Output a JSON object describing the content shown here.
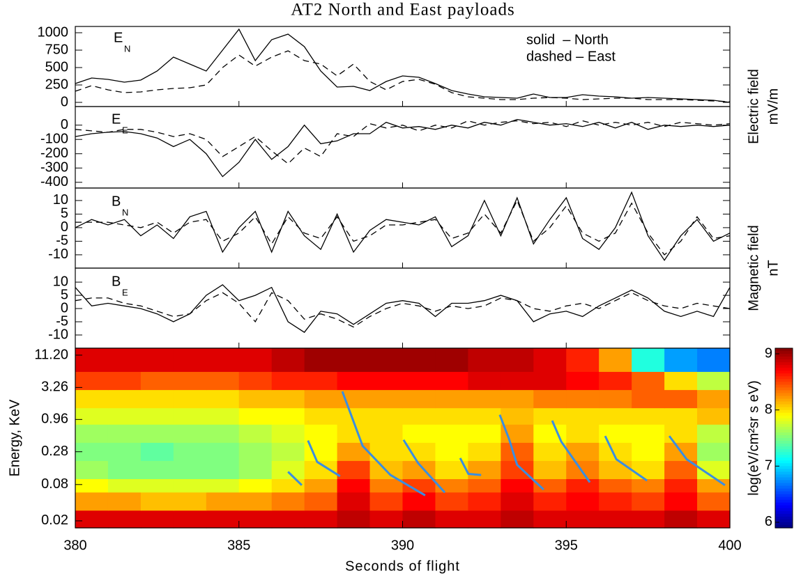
{
  "chart_data": [
    {
      "type": "line",
      "title": "AT2 North and East payloads",
      "label": "E",
      "label_sub": "N",
      "ylabel_lines": [
        "Electric field",
        "mV/m"
      ],
      "xlim": [
        380,
        400
      ],
      "ylim": [
        -60,
        1090
      ],
      "yticks": [
        0,
        250,
        500,
        750,
        1000
      ],
      "x": [
        380,
        380.5,
        381,
        381.5,
        382,
        382.5,
        383,
        383.5,
        384,
        384.5,
        385,
        385.5,
        386,
        386.5,
        387,
        387.5,
        388,
        388.5,
        389,
        389.5,
        390,
        390.5,
        391,
        391.5,
        392,
        392.5,
        393,
        393.5,
        394,
        394.5,
        395,
        395.5,
        396,
        396.5,
        397,
        397.5,
        398,
        398.5,
        399,
        399.5,
        400
      ],
      "series": [
        {
          "name": "solid  – North",
          "dash": "solid",
          "color": "#000000",
          "values": [
            270,
            350,
            330,
            290,
            320,
            450,
            650,
            550,
            450,
            750,
            1050,
            600,
            900,
            980,
            800,
            450,
            220,
            230,
            170,
            300,
            380,
            360,
            270,
            170,
            120,
            80,
            70,
            60,
            120,
            70,
            70,
            110,
            90,
            80,
            60,
            70,
            60,
            50,
            40,
            30,
            0
          ]
        },
        {
          "name": "dashed – East",
          "dash": "dashed",
          "color": "#000000",
          "values": [
            160,
            240,
            180,
            140,
            150,
            180,
            200,
            210,
            250,
            500,
            680,
            520,
            650,
            740,
            600,
            550,
            380,
            550,
            300,
            180,
            300,
            330,
            260,
            140,
            80,
            60,
            40,
            40,
            60,
            70,
            60,
            40,
            50,
            60,
            60,
            40,
            40,
            40,
            30,
            20,
            10
          ]
        }
      ]
    },
    {
      "type": "line",
      "label": "E",
      "label_sub": "E",
      "xlim": [
        380,
        400
      ],
      "ylim": [
        -440,
        130
      ],
      "yticks": [
        0,
        -100,
        -200,
        -300,
        -400
      ],
      "x": [
        380,
        380.5,
        381,
        381.5,
        382,
        382.5,
        383,
        383.5,
        384,
        384.5,
        385,
        385.5,
        386,
        386.5,
        387,
        387.5,
        388,
        388.5,
        389,
        389.5,
        390,
        390.5,
        391,
        391.5,
        392,
        392.5,
        393,
        393.5,
        394,
        394.5,
        395,
        395.5,
        396,
        396.5,
        397,
        397.5,
        398,
        398.5,
        399,
        399.5,
        400
      ],
      "series": [
        {
          "dash": "solid",
          "color": "#000000",
          "values": [
            -80,
            -60,
            -50,
            -45,
            -60,
            -90,
            -150,
            -100,
            -200,
            -360,
            -260,
            -100,
            -240,
            -150,
            0,
            -130,
            -110,
            -60,
            -60,
            20,
            -20,
            -10,
            -30,
            0,
            -20,
            20,
            0,
            40,
            20,
            0,
            10,
            -10,
            20,
            -20,
            20,
            -30,
            0,
            -10,
            0,
            -10,
            0
          ]
        },
        {
          "dash": "dashed",
          "color": "#000000",
          "values": [
            -30,
            -40,
            -50,
            -30,
            -30,
            -50,
            -80,
            -60,
            -100,
            -220,
            -150,
            -80,
            -180,
            -270,
            -160,
            -220,
            -60,
            -80,
            10,
            -20,
            0,
            -40,
            0,
            -20,
            30,
            0,
            20,
            30,
            10,
            20,
            -10,
            30,
            0,
            20,
            0,
            20,
            -10,
            20,
            10,
            0,
            10
          ]
        }
      ]
    },
    {
      "type": "line",
      "label": "B",
      "label_sub": "N",
      "ylabel_lines": [
        "Magnetic field",
        "nT"
      ],
      "xlim": [
        380,
        400
      ],
      "ylim": [
        -14.9,
        14.6
      ],
      "yticks": [
        10,
        5,
        0,
        -5,
        -10
      ],
      "x": [
        380,
        380.5,
        381,
        381.5,
        382,
        382.5,
        383,
        383.5,
        384,
        384.5,
        385,
        385.5,
        386,
        386.5,
        387,
        387.5,
        388,
        388.5,
        389,
        389.5,
        390,
        390.5,
        391,
        391.5,
        392,
        392.5,
        393,
        393.5,
        394,
        394.5,
        395,
        395.5,
        396,
        396.5,
        397,
        397.5,
        398,
        398.5,
        399,
        399.5,
        400
      ],
      "series": [
        {
          "dash": "solid",
          "color": "#000000",
          "values": [
            0,
            3,
            1,
            3,
            -3,
            1,
            -4,
            4,
            6,
            -9,
            0,
            6,
            -9,
            6,
            -3,
            -8,
            5,
            -9,
            -1,
            3,
            2,
            1,
            4,
            -7,
            -3,
            10,
            -3,
            11,
            -6,
            3,
            11,
            -4,
            -8,
            0,
            13,
            -3,
            -12,
            -3,
            3,
            -5,
            -2
          ]
        },
        {
          "dash": "dashed",
          "color": "#000000",
          "values": [
            2,
            2,
            2,
            1,
            0,
            2,
            -2,
            2,
            3,
            -5,
            -2,
            4,
            -6,
            4,
            -2,
            -4,
            4,
            -5,
            -3,
            1,
            1,
            2,
            3,
            -4,
            -2,
            5,
            -2,
            10,
            -5,
            0,
            8,
            -2,
            -5,
            -2,
            9,
            -2,
            -10,
            -5,
            4,
            -4,
            -3
          ]
        }
      ]
    },
    {
      "type": "line",
      "label": "B",
      "label_sub": "E",
      "xlim": [
        380,
        400
      ],
      "ylim": [
        -15,
        15.3
      ],
      "yticks": [
        10,
        5,
        0,
        -5,
        -10
      ],
      "x": [
        380,
        380.5,
        381,
        381.5,
        382,
        382.5,
        383,
        383.5,
        384,
        384.5,
        385,
        385.5,
        386,
        386.5,
        387,
        387.5,
        388,
        388.5,
        389,
        389.5,
        390,
        390.5,
        391,
        391.5,
        392,
        392.5,
        393,
        393.5,
        394,
        394.5,
        395,
        395.5,
        396,
        396.5,
        397,
        397.5,
        398,
        398.5,
        399,
        399.5,
        400
      ],
      "series": [
        {
          "dash": "solid",
          "color": "#000000",
          "values": [
            8,
            1,
            2,
            1,
            0,
            -2,
            -5,
            -2,
            5,
            9,
            3,
            5,
            8,
            -5,
            -9,
            -1,
            -2,
            -6,
            -2,
            2,
            3,
            2,
            -3,
            2,
            2,
            3,
            5,
            3,
            -5,
            -2,
            -1,
            -3,
            1,
            4,
            7,
            4,
            -1,
            -3,
            -1,
            -3,
            8
          ]
        },
        {
          "dash": "dashed",
          "color": "#000000",
          "values": [
            3,
            4,
            4,
            2,
            1,
            -1,
            -3,
            -2,
            3,
            6,
            2,
            -5,
            6,
            3,
            -4,
            -2,
            -4,
            -7,
            -3,
            0,
            2,
            1,
            -1,
            1,
            0,
            1,
            4,
            3,
            0,
            -1,
            1,
            2,
            0,
            3,
            6,
            3,
            1,
            0,
            2,
            1,
            0
          ]
        }
      ]
    },
    {
      "type": "heatmap",
      "ylabel": "Energy, KeV",
      "xlabel": "Seconds of flight",
      "log": true,
      "colormap": "jet",
      "xlim": [
        380,
        400
      ],
      "xticks": [
        380,
        385,
        390,
        395,
        400
      ],
      "ylim": [
        0.0153,
        14.6
      ],
      "yticks": [
        0.02,
        0.08,
        0.28,
        0.96,
        3.26,
        {
          "value": 11.2,
          "label": "11.20"
        }
      ],
      "x_bins": [
        380,
        381,
        382,
        383,
        384,
        385,
        386,
        387,
        388,
        389,
        390,
        391,
        392,
        393,
        394,
        395,
        396,
        397,
        398,
        399,
        400
      ],
      "y_bins": [
        0.0153,
        0.03,
        0.06,
        0.1,
        0.2,
        0.4,
        0.8,
        1.5,
        3,
        6,
        14.6
      ],
      "z": [
        [
          8.8,
          8.8,
          8.8,
          8.8,
          8.8,
          8.8,
          8.8,
          8.8,
          8.9,
          8.8,
          8.9,
          8.8,
          8.8,
          8.9,
          8.8,
          8.8,
          8.8,
          8.8,
          8.9,
          8.8
        ],
        [
          8.2,
          8.2,
          8.1,
          8.1,
          8.2,
          8.2,
          8.3,
          8.4,
          8.8,
          8.5,
          8.7,
          8.5,
          8.6,
          8.8,
          8.6,
          8.7,
          8.6,
          8.5,
          8.7,
          8.4
        ],
        [
          7.9,
          7.8,
          7.8,
          7.8,
          7.8,
          7.9,
          8.0,
          8.2,
          8.7,
          8.3,
          8.5,
          8.3,
          8.4,
          8.7,
          8.4,
          8.6,
          8.4,
          8.3,
          8.6,
          8.2
        ],
        [
          7.6,
          7.5,
          7.5,
          7.5,
          7.5,
          7.6,
          7.8,
          8.0,
          8.5,
          8.1,
          8.2,
          8.0,
          8.2,
          8.5,
          8.1,
          8.3,
          8.1,
          8.0,
          8.4,
          7.8
        ],
        [
          7.5,
          7.5,
          7.4,
          7.5,
          7.5,
          7.6,
          7.7,
          7.9,
          8.2,
          8.0,
          8.0,
          7.9,
          8.0,
          8.4,
          8.0,
          8.2,
          8.0,
          7.9,
          8.2,
          7.6
        ],
        [
          7.6,
          7.6,
          7.6,
          7.6,
          7.6,
          7.7,
          7.8,
          7.9,
          8.0,
          8.0,
          7.9,
          7.9,
          7.9,
          8.2,
          7.9,
          8.0,
          7.9,
          7.9,
          8.0,
          7.7
        ],
        [
          7.8,
          7.8,
          7.8,
          7.8,
          7.8,
          7.9,
          7.9,
          8.0,
          8.0,
          8.0,
          8.0,
          8.0,
          8.0,
          8.1,
          8.0,
          8.0,
          8.0,
          8.0,
          8.0,
          8.1
        ],
        [
          8.0,
          8.0,
          8.0,
          8.0,
          8.0,
          8.1,
          8.1,
          8.2,
          8.2,
          8.2,
          8.2,
          8.2,
          8.2,
          8.2,
          8.3,
          8.3,
          8.3,
          8.4,
          8.4,
          8.2
        ],
        [
          8.5,
          8.5,
          8.4,
          8.4,
          8.4,
          8.5,
          8.6,
          8.6,
          8.7,
          8.7,
          8.7,
          8.7,
          8.8,
          8.8,
          8.8,
          8.7,
          8.6,
          8.4,
          8.0,
          7.7
        ],
        [
          8.8,
          8.8,
          8.8,
          8.8,
          8.8,
          8.8,
          8.9,
          9.0,
          9.0,
          9.0,
          9.0,
          9.0,
          8.9,
          8.9,
          8.8,
          8.6,
          8.2,
          7.2,
          6.8,
          6.7
        ]
      ],
      "zlim": [
        5.9,
        9.1
      ],
      "zticks": [
        6,
        7,
        8,
        9
      ],
      "colorbar_label": "log(eV/cm²sr s eV)",
      "overlay_color": "#3a8ee0",
      "overlay_lines": [
        {
          "x": [
            386.5,
            386.92
          ],
          "y": [
            0.13,
            0.078
          ]
        },
        {
          "x": [
            387.11,
            387.39,
            388.09
          ],
          "y": [
            0.43,
            0.19,
            0.11
          ]
        },
        {
          "x": [
            388.16,
            388.78,
            389.63,
            390.69
          ],
          "y": [
            2.8,
            0.35,
            0.115,
            0.053
          ]
        },
        {
          "x": [
            390.03,
            390.48,
            391.29
          ],
          "y": [
            0.44,
            0.18,
            0.059
          ]
        },
        {
          "x": [
            391.76,
            392.01,
            392.4
          ],
          "y": [
            0.22,
            0.12,
            0.115
          ]
        },
        {
          "x": [
            392.97,
            393.25,
            393.5,
            394.31
          ],
          "y": [
            1.15,
            0.46,
            0.17,
            0.066
          ]
        },
        {
          "x": [
            394.57,
            394.85,
            395.72
          ],
          "y": [
            0.92,
            0.41,
            0.087
          ]
        },
        {
          "x": [
            396.19,
            396.53,
            397.47
          ],
          "y": [
            0.51,
            0.21,
            0.093
          ]
        },
        {
          "x": [
            398.15,
            398.68,
            399.85
          ],
          "y": [
            0.51,
            0.21,
            0.078
          ]
        }
      ]
    }
  ]
}
